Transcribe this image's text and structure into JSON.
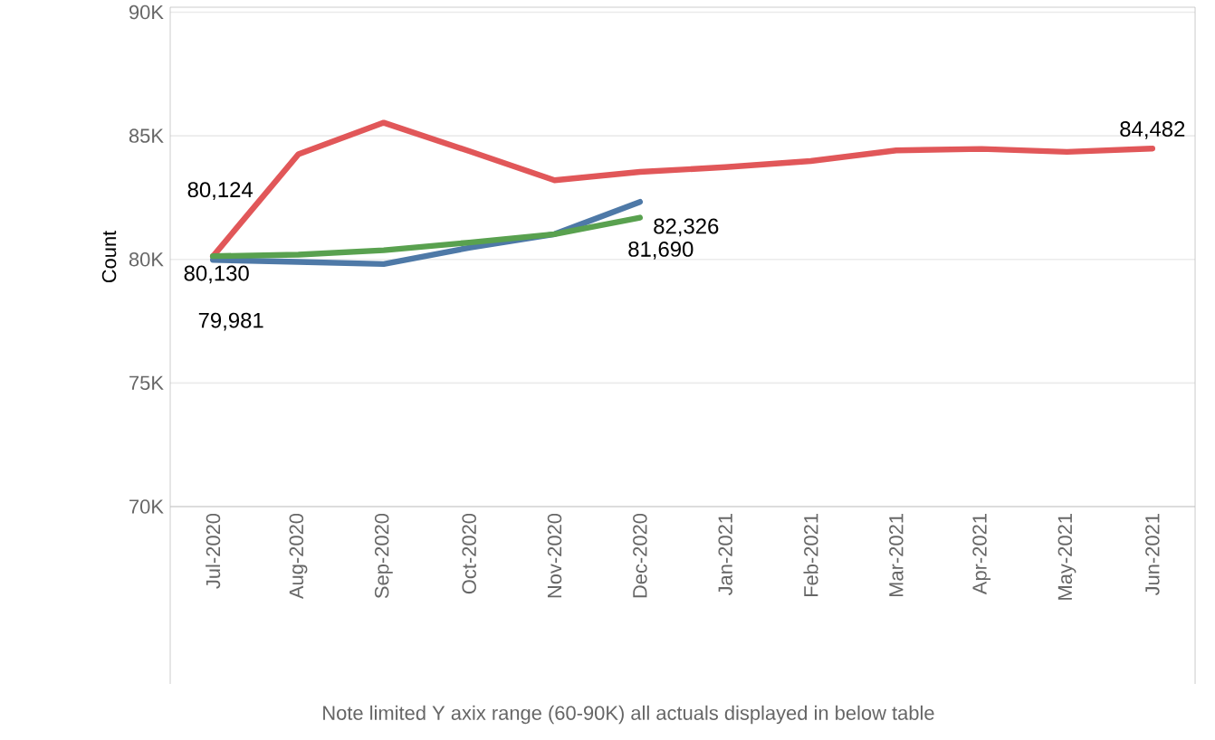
{
  "chart_data": {
    "type": "line",
    "ylabel": "Count",
    "categories": [
      "Jul-2020",
      "Aug-2020",
      "Sep-2020",
      "Oct-2020",
      "Nov-2020",
      "Dec-2020",
      "Jan-2021",
      "Feb-2021",
      "Mar-2021",
      "Apr-2021",
      "May-2021",
      "Jun-2021"
    ],
    "series": [
      {
        "color": "#e15759",
        "values": [
          80124,
          84250,
          85530,
          84380,
          83200,
          83540,
          83730,
          83980,
          84410,
          84470,
          84350,
          84482
        ],
        "value_labels": [
          "80,124",
          null,
          null,
          null,
          null,
          null,
          null,
          null,
          null,
          null,
          null,
          "84,482"
        ]
      },
      {
        "color": "#4e79a7",
        "values": [
          79981,
          79900,
          79810,
          80470,
          81020,
          82326,
          null,
          null,
          null,
          null,
          null,
          null
        ],
        "value_labels": [
          "79,981",
          null,
          null,
          null,
          null,
          "82,326",
          null,
          null,
          null,
          null,
          null,
          null
        ]
      },
      {
        "color": "#59a14f",
        "values": [
          80130,
          80190,
          80370,
          80680,
          81020,
          81690,
          null,
          null,
          null,
          null,
          null,
          null
        ],
        "value_labels": [
          "80,130",
          null,
          null,
          null,
          null,
          "81,690",
          null,
          null,
          null,
          null,
          null,
          null
        ]
      }
    ],
    "ylim": [
      70000,
      90200
    ],
    "yticks": [
      {
        "value": 70000,
        "label": "70K"
      },
      {
        "value": 75000,
        "label": "75K"
      },
      {
        "value": 80000,
        "label": "80K"
      },
      {
        "value": 85000,
        "label": "85K"
      },
      {
        "value": 90000,
        "label": "90K"
      }
    ],
    "grid": "y",
    "marker": "none",
    "line_style": "solid",
    "annotations": [
      "Note limited Y axix range (60-90K) all actuals displayed in below table"
    ]
  }
}
